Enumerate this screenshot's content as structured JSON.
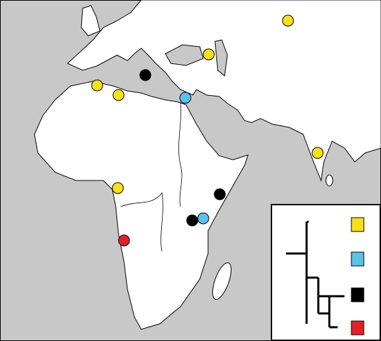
{
  "legend": {
    "colors": [
      "#f7e017",
      "#5bc2ea",
      "#000000",
      "#e3202a"
    ]
  }
}
